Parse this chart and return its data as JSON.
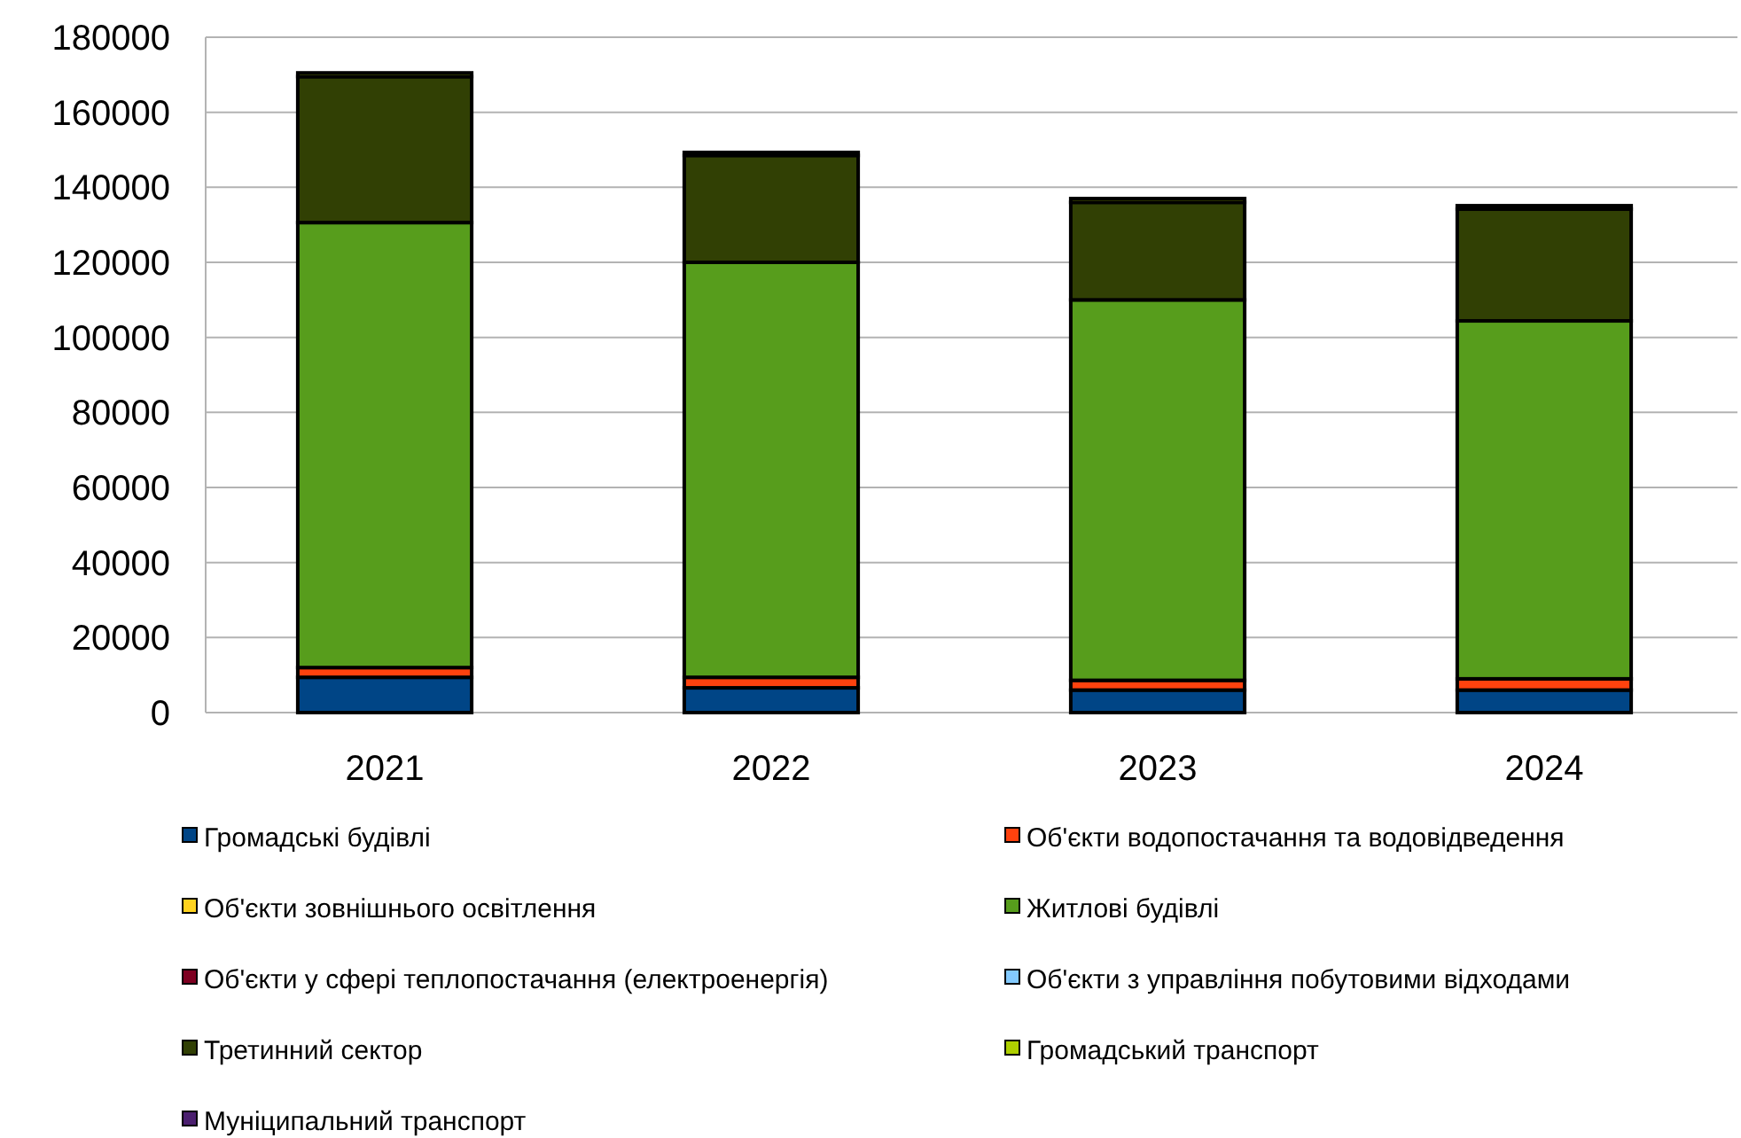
{
  "chart_data": {
    "type": "bar",
    "stacked": true,
    "categories": [
      "2021",
      "2022",
      "2023",
      "2024"
    ],
    "series": [
      {
        "name": "Громадські будівлі",
        "color": "#004586",
        "values": [
          9400,
          6600,
          6000,
          6000
        ]
      },
      {
        "name": "Об'єкти водопостачання та водовідведення",
        "color": "#ff420e",
        "values": [
          2600,
          2800,
          2600,
          3000
        ]
      },
      {
        "name": "Об'єкти зовнішнього освітлення",
        "color": "#ffd320",
        "values": [
          0,
          0,
          0,
          0
        ]
      },
      {
        "name": "Житлові будівлі",
        "color": "#579d1c",
        "values": [
          118600,
          110600,
          101400,
          95400
        ]
      },
      {
        "name": "Об'єкти у сфері теплопостачання (електроенергія)",
        "color": "#7e0021",
        "values": [
          0,
          0,
          0,
          0
        ]
      },
      {
        "name": "Об'єкти з управління побутовими відходами",
        "color": "#83caff",
        "values": [
          0,
          0,
          0,
          0
        ]
      },
      {
        "name": "Третинний сектор",
        "color": "#314004",
        "values": [
          38900,
          28500,
          26000,
          29800
        ]
      },
      {
        "name": "Громадський транспорт",
        "color": "#aecf00",
        "values": [
          1000,
          800,
          1000,
          900
        ]
      },
      {
        "name": "Муніципальний  транспорт",
        "color": "#4b1f6f",
        "values": [
          0,
          0,
          0,
          0
        ]
      }
    ],
    "ylim": [
      0,
      180000
    ],
    "yticks": [
      0,
      20000,
      40000,
      60000,
      80000,
      100000,
      120000,
      140000,
      160000,
      180000
    ],
    "grid": "y",
    "legend": "bottom"
  }
}
